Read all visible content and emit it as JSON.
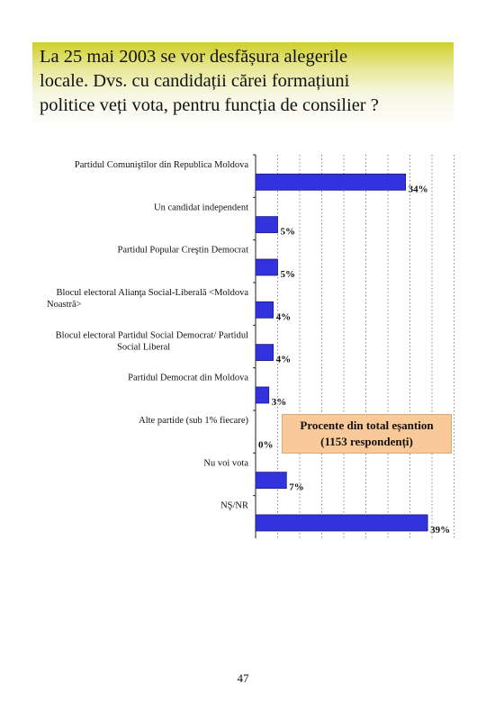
{
  "header": {
    "title_lines": [
      "La 25 mai 2003 se vor desfășura alegerile",
      "locale. Dvs. cu candidații cărei formațiuni",
      "politice veți vota, pentru funcția de consilier ?"
    ]
  },
  "legend": {
    "line1": "Procente din total eșantion",
    "line2": "(1153 respondenți)"
  },
  "page_number": "47",
  "colors": {
    "bar_fill": "#3333dd",
    "bar_edge": "#1a1a80",
    "title_gradient_top": "#cfcf2a",
    "legend_fill": "#f9c99a"
  },
  "chart_data": {
    "type": "bar",
    "orientation": "horizontal",
    "categories": [
      [
        "Partidul Comuniştilor din Republica Moldova"
      ],
      [
        "Un candidat independent"
      ],
      [
        "Partidul Popular Creştin Democrat"
      ],
      [
        "Blocul electoral Alianţa Social-Liberală <Moldova",
        "Noastră>"
      ],
      [
        "Blocul electoral Partidul Social Democrat/ Partidul",
        "Social Liberal"
      ],
      [
        "Partidul Democrat din Moldova"
      ],
      [
        "Alte partide (sub 1% fiecare)"
      ],
      [
        "Nu voi vota"
      ],
      [
        "NŞ/NR"
      ]
    ],
    "values": [
      34,
      5,
      5,
      4,
      4,
      3,
      0,
      7,
      39
    ],
    "value_labels": [
      "34%",
      "5%",
      "5%",
      "4%",
      "4%",
      "3%",
      "0%",
      "7%",
      "39%"
    ],
    "xlim": [
      0,
      40
    ],
    "grid": true,
    "legend_placement": "right"
  }
}
